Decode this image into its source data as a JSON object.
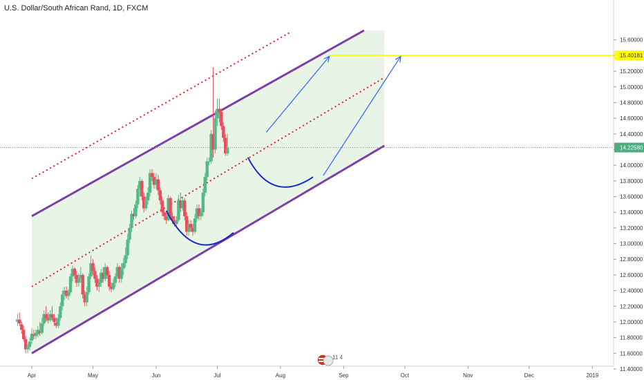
{
  "header": {
    "title": "U.S. Dollar/South African Rand, 1D, FXCM"
  },
  "colors": {
    "up": "#53b987",
    "down": "#eb4d5c",
    "channel": "#7b3fa6",
    "channel_fill": "#e4f2e1",
    "midline": "#e31b23",
    "target": "#ffff00",
    "arrow": "#2962ff",
    "cup": "#1428c8",
    "last_price": "#4caf82"
  },
  "badge": {
    "text": "11 4"
  },
  "chart_data": {
    "type": "candlestick",
    "title": "U.S. Dollar/South African Rand, 1D, FXCM",
    "ylim": [
      11.4,
      15.7
    ],
    "y_ticks": [
      11.4,
      11.6,
      11.8,
      12.0,
      12.2,
      12.4,
      12.6,
      12.8,
      13.0,
      13.2,
      13.4,
      13.6,
      13.8,
      14.0,
      14.2,
      14.4,
      14.6,
      14.8,
      15.0,
      15.2,
      15.4,
      15.6
    ],
    "y_tick_labels": [
      "11.40000",
      "11.60000",
      "11.80000",
      "12.00000",
      "12.20000",
      "12.40000",
      "12.60000",
      "12.80000",
      "13.00000",
      "13.20000",
      "13.40000",
      "13.60000",
      "13.80000",
      "14.00000",
      "14.20000",
      "14.40000",
      "14.60000",
      "14.80000",
      "15.00000",
      "15.20000",
      "15.40000",
      "15.60000"
    ],
    "x_labels": [
      {
        "label": "Apr",
        "day": 0
      },
      {
        "label": "May",
        "day": 30
      },
      {
        "label": "Jun",
        "day": 61
      },
      {
        "label": "Jul",
        "day": 91
      },
      {
        "label": "Aug",
        "day": 122
      },
      {
        "label": "Sep",
        "day": 153
      },
      {
        "label": "Oct",
        "day": 183
      },
      {
        "label": "Nov",
        "day": 214
      },
      {
        "label": "Dec",
        "day": 244
      },
      {
        "label": "2019",
        "day": 275
      }
    ],
    "candles": [
      {
        "d": -7,
        "o": 12.0,
        "h": 12.1,
        "l": 11.95,
        "c": 12.03
      },
      {
        "d": -6,
        "o": 12.03,
        "h": 12.12,
        "l": 11.95,
        "c": 11.98
      },
      {
        "d": -5,
        "o": 11.97,
        "h": 12.0,
        "l": 11.85,
        "c": 11.9
      },
      {
        "d": -4,
        "o": 11.9,
        "h": 11.95,
        "l": 11.75,
        "c": 11.78
      },
      {
        "d": -3,
        "o": 11.78,
        "h": 11.82,
        "l": 11.6,
        "c": 11.65
      },
      {
        "d": -2,
        "o": 11.65,
        "h": 11.72,
        "l": 11.6,
        "c": 11.68
      },
      {
        "d": -1,
        "o": 11.68,
        "h": 11.8,
        "l": 11.63,
        "c": 11.75
      },
      {
        "d": 0,
        "o": 11.76,
        "h": 11.92,
        "l": 11.72,
        "c": 11.85
      },
      {
        "d": 1,
        "o": 11.84,
        "h": 11.9,
        "l": 11.78,
        "c": 11.82
      },
      {
        "d": 2,
        "o": 11.82,
        "h": 11.9,
        "l": 11.78,
        "c": 11.86
      },
      {
        "d": 3,
        "o": 11.84,
        "h": 11.95,
        "l": 11.8,
        "c": 11.9
      },
      {
        "d": 4,
        "o": 11.88,
        "h": 12.0,
        "l": 11.82,
        "c": 11.86
      },
      {
        "d": 5,
        "o": 11.86,
        "h": 12.05,
        "l": 11.84,
        "c": 11.98
      },
      {
        "d": 6,
        "o": 11.98,
        "h": 12.15,
        "l": 11.95,
        "c": 12.1
      },
      {
        "d": 7,
        "o": 12.1,
        "h": 12.2,
        "l": 12.0,
        "c": 12.05
      },
      {
        "d": 8,
        "o": 12.05,
        "h": 12.12,
        "l": 11.98,
        "c": 12.02
      },
      {
        "d": 9,
        "o": 12.02,
        "h": 12.15,
        "l": 12.0,
        "c": 12.1
      },
      {
        "d": 10,
        "o": 12.1,
        "h": 12.2,
        "l": 12.02,
        "c": 12.05
      },
      {
        "d": 11,
        "o": 12.05,
        "h": 12.1,
        "l": 11.95,
        "c": 12.0
      },
      {
        "d": 12,
        "o": 11.99,
        "h": 12.06,
        "l": 11.92,
        "c": 11.95
      },
      {
        "d": 13,
        "o": 11.95,
        "h": 12.1,
        "l": 11.92,
        "c": 12.05
      },
      {
        "d": 14,
        "o": 12.05,
        "h": 12.25,
        "l": 12.02,
        "c": 12.2
      },
      {
        "d": 15,
        "o": 12.2,
        "h": 12.4,
        "l": 12.15,
        "c": 12.35
      },
      {
        "d": 16,
        "o": 12.35,
        "h": 12.45,
        "l": 12.28,
        "c": 12.4
      },
      {
        "d": 17,
        "o": 12.4,
        "h": 12.45,
        "l": 12.3,
        "c": 12.33
      },
      {
        "d": 18,
        "o": 12.33,
        "h": 12.42,
        "l": 12.28,
        "c": 12.38
      },
      {
        "d": 19,
        "o": 12.38,
        "h": 12.62,
        "l": 12.35,
        "c": 12.58
      },
      {
        "d": 20,
        "o": 12.58,
        "h": 12.72,
        "l": 12.52,
        "c": 12.68
      },
      {
        "d": 21,
        "o": 12.68,
        "h": 12.7,
        "l": 12.55,
        "c": 12.6
      },
      {
        "d": 22,
        "o": 12.6,
        "h": 12.65,
        "l": 12.45,
        "c": 12.5
      },
      {
        "d": 23,
        "o": 12.5,
        "h": 12.62,
        "l": 12.45,
        "c": 12.56
      },
      {
        "d": 24,
        "o": 12.56,
        "h": 12.7,
        "l": 12.5,
        "c": 12.6
      },
      {
        "d": 25,
        "o": 12.6,
        "h": 12.62,
        "l": 12.3,
        "c": 12.35
      },
      {
        "d": 26,
        "o": 12.35,
        "h": 12.4,
        "l": 12.2,
        "c": 12.25
      },
      {
        "d": 27,
        "o": 12.25,
        "h": 12.45,
        "l": 12.2,
        "c": 12.38
      },
      {
        "d": 28,
        "o": 12.38,
        "h": 12.62,
        "l": 12.35,
        "c": 12.58
      },
      {
        "d": 29,
        "o": 12.58,
        "h": 12.85,
        "l": 12.55,
        "c": 12.75
      },
      {
        "d": 30,
        "o": 12.75,
        "h": 12.8,
        "l": 12.6,
        "c": 12.65
      },
      {
        "d": 31,
        "o": 12.65,
        "h": 12.7,
        "l": 12.5,
        "c": 12.55
      },
      {
        "d": 32,
        "o": 12.55,
        "h": 12.6,
        "l": 12.4,
        "c": 12.45
      },
      {
        "d": 33,
        "o": 12.45,
        "h": 12.55,
        "l": 12.38,
        "c": 12.5
      },
      {
        "d": 34,
        "o": 12.5,
        "h": 12.68,
        "l": 12.45,
        "c": 12.63
      },
      {
        "d": 35,
        "o": 12.63,
        "h": 12.7,
        "l": 12.5,
        "c": 12.55
      },
      {
        "d": 36,
        "o": 12.55,
        "h": 12.75,
        "l": 12.52,
        "c": 12.7
      },
      {
        "d": 37,
        "o": 12.7,
        "h": 12.72,
        "l": 12.55,
        "c": 12.6
      },
      {
        "d": 38,
        "o": 12.6,
        "h": 12.65,
        "l": 12.4,
        "c": 12.45
      },
      {
        "d": 39,
        "o": 12.45,
        "h": 12.5,
        "l": 12.38,
        "c": 12.42
      },
      {
        "d": 40,
        "o": 12.42,
        "h": 12.55,
        "l": 12.4,
        "c": 12.5
      },
      {
        "d": 41,
        "o": 12.5,
        "h": 12.62,
        "l": 12.45,
        "c": 12.58
      },
      {
        "d": 42,
        "o": 12.58,
        "h": 12.75,
        "l": 12.55,
        "c": 12.7
      },
      {
        "d": 43,
        "o": 12.7,
        "h": 12.72,
        "l": 12.5,
        "c": 12.55
      },
      {
        "d": 44,
        "o": 12.55,
        "h": 12.75,
        "l": 12.5,
        "c": 12.68
      },
      {
        "d": 45,
        "o": 12.68,
        "h": 12.82,
        "l": 12.6,
        "c": 12.75
      },
      {
        "d": 46,
        "o": 12.75,
        "h": 12.95,
        "l": 12.7,
        "c": 12.85
      },
      {
        "d": 47,
        "o": 12.85,
        "h": 13.12,
        "l": 12.8,
        "c": 13.05
      },
      {
        "d": 48,
        "o": 13.05,
        "h": 13.25,
        "l": 13.0,
        "c": 13.2
      },
      {
        "d": 49,
        "o": 13.2,
        "h": 13.42,
        "l": 13.15,
        "c": 13.38
      },
      {
        "d": 50,
        "o": 13.38,
        "h": 13.45,
        "l": 13.3,
        "c": 13.35
      },
      {
        "d": 51,
        "o": 13.35,
        "h": 13.55,
        "l": 13.32,
        "c": 13.5
      },
      {
        "d": 52,
        "o": 13.5,
        "h": 13.75,
        "l": 13.45,
        "c": 13.7
      },
      {
        "d": 53,
        "o": 13.7,
        "h": 13.85,
        "l": 13.6,
        "c": 13.8
      },
      {
        "d": 54,
        "o": 13.8,
        "h": 13.82,
        "l": 13.55,
        "c": 13.6
      },
      {
        "d": 55,
        "o": 13.6,
        "h": 13.65,
        "l": 13.4,
        "c": 13.45
      },
      {
        "d": 56,
        "o": 13.45,
        "h": 13.6,
        "l": 13.42,
        "c": 13.55
      },
      {
        "d": 57,
        "o": 13.55,
        "h": 13.72,
        "l": 13.5,
        "c": 13.65
      },
      {
        "d": 58,
        "o": 13.65,
        "h": 13.95,
        "l": 13.6,
        "c": 13.9
      },
      {
        "d": 59,
        "o": 13.9,
        "h": 13.95,
        "l": 13.8,
        "c": 13.85
      },
      {
        "d": 60,
        "o": 13.85,
        "h": 13.9,
        "l": 13.7,
        "c": 13.75
      },
      {
        "d": 61,
        "o": 13.75,
        "h": 13.9,
        "l": 13.7,
        "c": 13.82
      },
      {
        "d": 62,
        "o": 13.82,
        "h": 13.88,
        "l": 13.62,
        "c": 13.68
      },
      {
        "d": 63,
        "o": 13.68,
        "h": 13.72,
        "l": 13.5,
        "c": 13.55
      },
      {
        "d": 64,
        "o": 13.55,
        "h": 13.6,
        "l": 13.35,
        "c": 13.4
      },
      {
        "d": 65,
        "o": 13.4,
        "h": 13.45,
        "l": 13.3,
        "c": 13.35
      },
      {
        "d": 66,
        "o": 13.35,
        "h": 13.4,
        "l": 13.25,
        "c": 13.3
      },
      {
        "d": 67,
        "o": 13.3,
        "h": 13.62,
        "l": 13.28,
        "c": 13.58
      },
      {
        "d": 68,
        "o": 13.58,
        "h": 13.6,
        "l": 13.3,
        "c": 13.35
      },
      {
        "d": 69,
        "o": 13.35,
        "h": 13.4,
        "l": 13.25,
        "c": 13.3
      },
      {
        "d": 70,
        "o": 13.3,
        "h": 13.35,
        "l": 13.22,
        "c": 13.25
      },
      {
        "d": 71,
        "o": 13.25,
        "h": 13.35,
        "l": 13.22,
        "c": 13.3
      },
      {
        "d": 72,
        "o": 13.3,
        "h": 13.62,
        "l": 13.28,
        "c": 13.55
      },
      {
        "d": 73,
        "o": 13.55,
        "h": 13.65,
        "l": 13.4,
        "c": 13.45
      },
      {
        "d": 74,
        "o": 13.45,
        "h": 13.6,
        "l": 13.42,
        "c": 13.55
      },
      {
        "d": 75,
        "o": 13.55,
        "h": 13.58,
        "l": 13.3,
        "c": 13.35
      },
      {
        "d": 76,
        "o": 13.35,
        "h": 13.4,
        "l": 13.1,
        "c": 13.15
      },
      {
        "d": 77,
        "o": 13.15,
        "h": 13.3,
        "l": 13.1,
        "c": 13.25
      },
      {
        "d": 78,
        "o": 13.25,
        "h": 13.3,
        "l": 13.15,
        "c": 13.2
      },
      {
        "d": 79,
        "o": 13.2,
        "h": 13.25,
        "l": 13.1,
        "c": 13.15
      },
      {
        "d": 80,
        "o": 13.15,
        "h": 13.38,
        "l": 13.12,
        "c": 13.32
      },
      {
        "d": 81,
        "o": 13.32,
        "h": 13.5,
        "l": 13.28,
        "c": 13.45
      },
      {
        "d": 82,
        "o": 13.45,
        "h": 13.5,
        "l": 13.3,
        "c": 13.35
      },
      {
        "d": 83,
        "o": 13.35,
        "h": 13.45,
        "l": 13.3,
        "c": 13.4
      },
      {
        "d": 84,
        "o": 13.4,
        "h": 13.7,
        "l": 13.35,
        "c": 13.65
      },
      {
        "d": 85,
        "o": 13.65,
        "h": 13.9,
        "l": 13.6,
        "c": 13.85
      },
      {
        "d": 86,
        "o": 13.85,
        "h": 14.1,
        "l": 13.8,
        "c": 14.05
      },
      {
        "d": 87,
        "o": 14.05,
        "h": 14.1,
        "l": 14.0,
        "c": 14.05
      },
      {
        "d": 88,
        "o": 14.05,
        "h": 14.45,
        "l": 14.02,
        "c": 14.4
      },
      {
        "d": 89,
        "o": 14.4,
        "h": 15.25,
        "l": 14.1,
        "c": 14.2
      },
      {
        "d": 90,
        "o": 14.2,
        "h": 14.7,
        "l": 14.15,
        "c": 14.6
      },
      {
        "d": 91,
        "o": 14.6,
        "h": 14.85,
        "l": 14.5,
        "c": 14.72
      },
      {
        "d": 92,
        "o": 14.72,
        "h": 14.85,
        "l": 14.55,
        "c": 14.68
      },
      {
        "d": 93,
        "o": 14.68,
        "h": 14.72,
        "l": 14.45,
        "c": 14.5
      },
      {
        "d": 94,
        "o": 14.5,
        "h": 14.55,
        "l": 14.3,
        "c": 14.35
      },
      {
        "d": 95,
        "o": 14.35,
        "h": 14.4,
        "l": 14.12,
        "c": 14.15
      },
      {
        "d": 96,
        "o": 14.15,
        "h": 14.4,
        "l": 14.12,
        "c": 14.22
      }
    ],
    "channel": {
      "upper": [
        {
          "day": 0,
          "price": 13.35
        },
        {
          "day": 163,
          "price": 15.72
        }
      ],
      "lower": [
        {
          "day": 0,
          "price": 11.6
        },
        {
          "day": 173,
          "price": 14.25
        }
      ],
      "shade_right_day": 173
    },
    "midlines": [
      {
        "from": {
          "day": 0,
          "price": 12.45
        },
        "to": {
          "day": 173,
          "price": 15.12
        }
      },
      {
        "from": {
          "day": 0,
          "price": 13.83
        },
        "to": {
          "day": 127,
          "price": 15.7
        }
      }
    ],
    "target_line": {
      "price": 15.40181,
      "from_day": 146
    },
    "arrows": [
      {
        "from": {
          "day": 115,
          "price": 14.42
        },
        "to": {
          "day": 146,
          "price": 15.39
        }
      },
      {
        "from": {
          "day": 143,
          "price": 13.87
        },
        "to": {
          "day": 181,
          "price": 15.39
        }
      }
    ],
    "cups": [
      {
        "from": {
          "day": 66,
          "price": 13.42
        },
        "control": {
          "day": 80,
          "price": 12.72
        },
        "to": {
          "day": 99,
          "price": 13.14
        }
      },
      {
        "from": {
          "day": 106,
          "price": 14.1
        },
        "control": {
          "day": 118,
          "price": 13.5
        },
        "to": {
          "day": 138,
          "price": 13.85
        }
      }
    ],
    "last_price": {
      "value": 14.2258,
      "label": "14.22580"
    },
    "target_label": "15.40181"
  }
}
